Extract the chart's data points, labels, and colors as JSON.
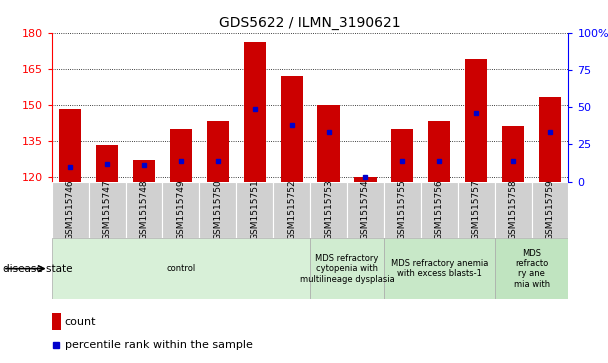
{
  "title": "GDS5622 / ILMN_3190621",
  "samples": [
    "GSM1515746",
    "GSM1515747",
    "GSM1515748",
    "GSM1515749",
    "GSM1515750",
    "GSM1515751",
    "GSM1515752",
    "GSM1515753",
    "GSM1515754",
    "GSM1515755",
    "GSM1515756",
    "GSM1515757",
    "GSM1515758",
    "GSM1515759"
  ],
  "counts": [
    148,
    133,
    127,
    140,
    143,
    176,
    162,
    150,
    120,
    140,
    143,
    169,
    141,
    153
  ],
  "percentile_ranks": [
    10,
    12,
    11,
    14,
    14,
    49,
    38,
    33,
    3,
    14,
    14,
    46,
    14,
    33
  ],
  "ylim_left": [
    118,
    180
  ],
  "ylim_right": [
    0,
    100
  ],
  "yticks_left": [
    120,
    135,
    150,
    165,
    180
  ],
  "yticks_right": [
    0,
    25,
    50,
    75,
    100
  ],
  "bar_color": "#cc0000",
  "dot_color": "#0000cc",
  "bar_width": 0.6,
  "disease_groups": [
    {
      "label": "control",
      "start": 0,
      "end": 7,
      "color": "#d8f0d8"
    },
    {
      "label": "MDS refractory\ncytopenia with\nmultilineage dysplasia",
      "start": 7,
      "end": 9,
      "color": "#d0ecd0"
    },
    {
      "label": "MDS refractory anemia\nwith excess blasts-1",
      "start": 9,
      "end": 12,
      "color": "#c8e8c8"
    },
    {
      "label": "MDS\nrefracto\nry ane\nmia with",
      "start": 12,
      "end": 14,
      "color": "#c0e4c0"
    }
  ],
  "disease_state_label": "disease state",
  "legend_count_label": "count",
  "legend_percentile_label": "percentile rank within the sample",
  "tick_bg_color": "#d0d0d0",
  "spine_color": "#000000",
  "figsize": [
    6.08,
    3.63
  ],
  "dpi": 100
}
